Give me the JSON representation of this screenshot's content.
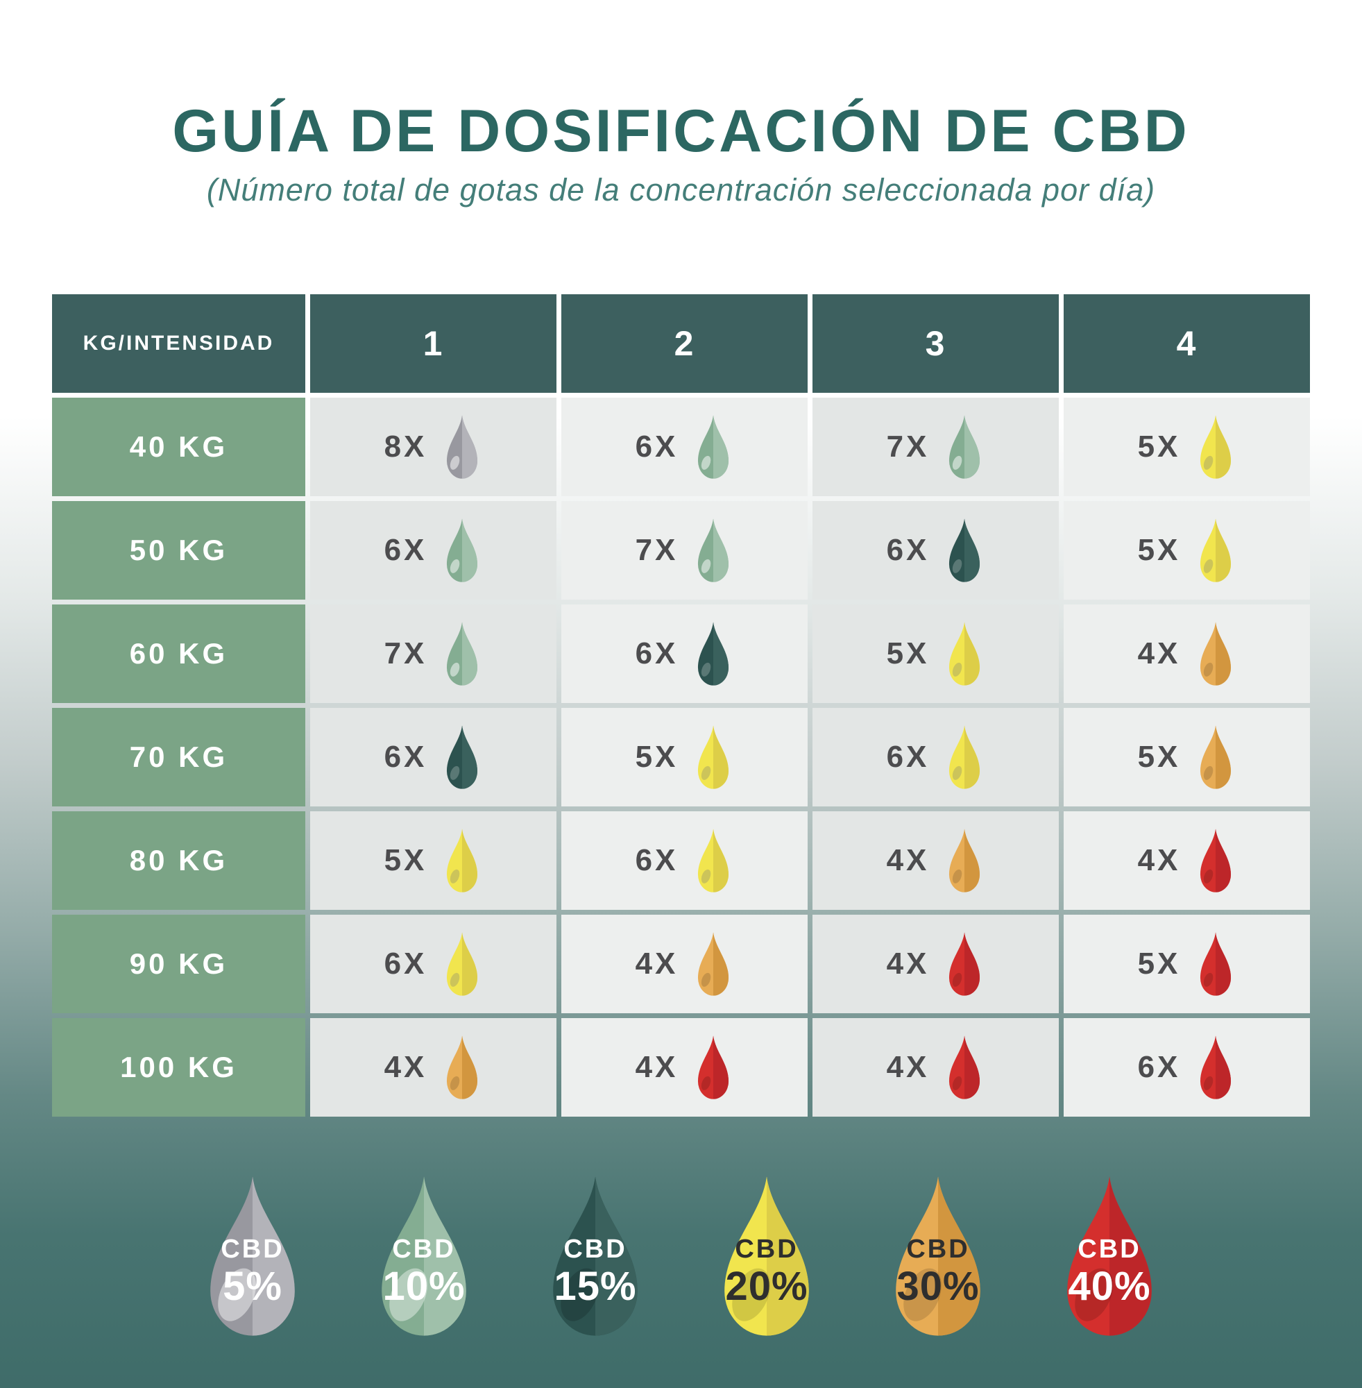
{
  "title": "GUÍA DE DOSIFICACIÓN DE CBD",
  "subtitle": "(Número total de gotas de la concentración seleccionada por día)",
  "table": {
    "corner_label": "KG/INTENSIDAD",
    "intensity_columns": [
      "1",
      "2",
      "3",
      "4"
    ],
    "rows": [
      {
        "weight": "40 KG",
        "cells": [
          {
            "count": "8X",
            "cbd": "5%",
            "color": "gray"
          },
          {
            "count": "6X",
            "cbd": "10%",
            "color": "green"
          },
          {
            "count": "7X",
            "cbd": "10%",
            "color": "green"
          },
          {
            "count": "5X",
            "cbd": "20%",
            "color": "yellow"
          }
        ]
      },
      {
        "weight": "50 KG",
        "cells": [
          {
            "count": "6X",
            "cbd": "10%",
            "color": "green"
          },
          {
            "count": "7X",
            "cbd": "10%",
            "color": "green"
          },
          {
            "count": "6X",
            "cbd": "15%",
            "color": "teal"
          },
          {
            "count": "5X",
            "cbd": "20%",
            "color": "yellow"
          }
        ]
      },
      {
        "weight": "60 KG",
        "cells": [
          {
            "count": "7X",
            "cbd": "10%",
            "color": "green"
          },
          {
            "count": "6X",
            "cbd": "15%",
            "color": "teal"
          },
          {
            "count": "5X",
            "cbd": "20%",
            "color": "yellow"
          },
          {
            "count": "4X",
            "cbd": "30%",
            "color": "orange"
          }
        ]
      },
      {
        "weight": "70 KG",
        "cells": [
          {
            "count": "6X",
            "cbd": "15%",
            "color": "teal"
          },
          {
            "count": "5X",
            "cbd": "20%",
            "color": "yellow"
          },
          {
            "count": "6X",
            "cbd": "20%",
            "color": "yellow"
          },
          {
            "count": "5X",
            "cbd": "30%",
            "color": "orange"
          }
        ]
      },
      {
        "weight": "80 KG",
        "cells": [
          {
            "count": "5X",
            "cbd": "20%",
            "color": "yellow"
          },
          {
            "count": "6X",
            "cbd": "20%",
            "color": "yellow"
          },
          {
            "count": "4X",
            "cbd": "30%",
            "color": "orange"
          },
          {
            "count": "4X",
            "cbd": "40%",
            "color": "red"
          }
        ]
      },
      {
        "weight": "90 KG",
        "cells": [
          {
            "count": "6X",
            "cbd": "20%",
            "color": "yellow"
          },
          {
            "count": "4X",
            "cbd": "30%",
            "color": "orange"
          },
          {
            "count": "4X",
            "cbd": "40%",
            "color": "red"
          },
          {
            "count": "5X",
            "cbd": "40%",
            "color": "red"
          }
        ]
      },
      {
        "weight": "100 KG",
        "cells": [
          {
            "count": "4X",
            "cbd": "30%",
            "color": "orange"
          },
          {
            "count": "4X",
            "cbd": "40%",
            "color": "red"
          },
          {
            "count": "4X",
            "cbd": "40%",
            "color": "red"
          },
          {
            "count": "6X",
            "cbd": "40%",
            "color": "red"
          }
        ]
      }
    ]
  },
  "legend": {
    "items": [
      {
        "line1": "CBD",
        "line2": "5%",
        "color": "gray",
        "text_color": "#ffffff"
      },
      {
        "line1": "CBD",
        "line2": "10%",
        "color": "green",
        "text_color": "#ffffff"
      },
      {
        "line1": "CBD",
        "line2": "15%",
        "color": "teal",
        "text_color": "#ffffff"
      },
      {
        "line1": "CBD",
        "line2": "20%",
        "color": "yellow",
        "text_color": "#2e2e2e"
      },
      {
        "line1": "CBD",
        "line2": "30%",
        "color": "orange",
        "text_color": "#2e2e2e"
      },
      {
        "line1": "CBD",
        "line2": "40%",
        "color": "red",
        "text_color": "#ffffff"
      }
    ]
  },
  "chart_data": {
    "type": "table",
    "title": "GUÍA DE DOSIFICACIÓN DE CBD",
    "subtitle": "(Número total de gotas de la concentración seleccionada por día)",
    "row_header": "KG/INTENSIDAD",
    "columns": [
      "1",
      "2",
      "3",
      "4"
    ],
    "rows": [
      "40 KG",
      "50 KG",
      "60 KG",
      "70 KG",
      "80 KG",
      "90 KG",
      "100 KG"
    ],
    "drops_per_day": [
      [
        "8X @ CBD 5%",
        "6X @ CBD 10%",
        "7X @ CBD 10%",
        "5X @ CBD 20%"
      ],
      [
        "6X @ CBD 10%",
        "7X @ CBD 10%",
        "6X @ CBD 15%",
        "5X @ CBD 20%"
      ],
      [
        "7X @ CBD 10%",
        "6X @ CBD 15%",
        "5X @ CBD 20%",
        "4X @ CBD 30%"
      ],
      [
        "6X @ CBD 15%",
        "5X @ CBD 20%",
        "6X @ CBD 20%",
        "5X @ CBD 30%"
      ],
      [
        "5X @ CBD 20%",
        "6X @ CBD 20%",
        "4X @ CBD 30%",
        "4X @ CBD 40%"
      ],
      [
        "6X @ CBD 20%",
        "4X @ CBD 30%",
        "4X @ CBD 40%",
        "5X @ CBD 40%"
      ],
      [
        "4X @ CBD 30%",
        "4X @ CBD 40%",
        "4X @ CBD 40%",
        "6X @ CBD 40%"
      ]
    ],
    "legend": [
      "CBD 5%",
      "CBD 10%",
      "CBD 15%",
      "CBD 20%",
      "CBD 30%",
      "CBD 40%"
    ],
    "legend_position": "bottom"
  },
  "colors": {
    "ui": {
      "title_color": "#2c6762",
      "subtitle_color": "#447e79",
      "header_bg": "#3d605f",
      "row_label_bg": "#7ba486",
      "cell_bg_odd": "#e3e6e5",
      "cell_bg_even": "#edefee",
      "count_color": "#4c4c4e",
      "bg_top": "#ffffff",
      "bg_bottom": "#3f6c69"
    },
    "drops": {
      "gray": {
        "left": "#98989f",
        "right": "#b3b3b9",
        "spot_table": "rgba(255,255,255,0.5)",
        "spot_legend": "rgba(255,255,255,0.45)"
      },
      "green": {
        "left": "#84ad92",
        "right": "#9fc0aa",
        "spot_table": "rgba(255,255,255,0.5)",
        "spot_legend": "rgba(255,255,255,0.4)"
      },
      "teal": {
        "left": "#2c524f",
        "right": "#3a615d",
        "spot_table": "rgba(255,255,255,0.22)",
        "spot_legend": "rgba(0,0,0,0.16)"
      },
      "yellow": {
        "left": "#f1e54e",
        "right": "#ddce48",
        "spot_table": "rgba(120,120,120,0.3)",
        "spot_legend": "rgba(0,0,0,0.13)"
      },
      "orange": {
        "left": "#e7ac55",
        "right": "#d2963f",
        "spot_table": "rgba(0,0,0,0.14)",
        "spot_legend": "rgba(0,0,0,0.13)"
      },
      "red": {
        "left": "#d42f2d",
        "right": "#bd2629",
        "spot_table": "rgba(0,0,0,0.15)",
        "spot_legend": "rgba(0,0,0,0.14)"
      }
    }
  }
}
